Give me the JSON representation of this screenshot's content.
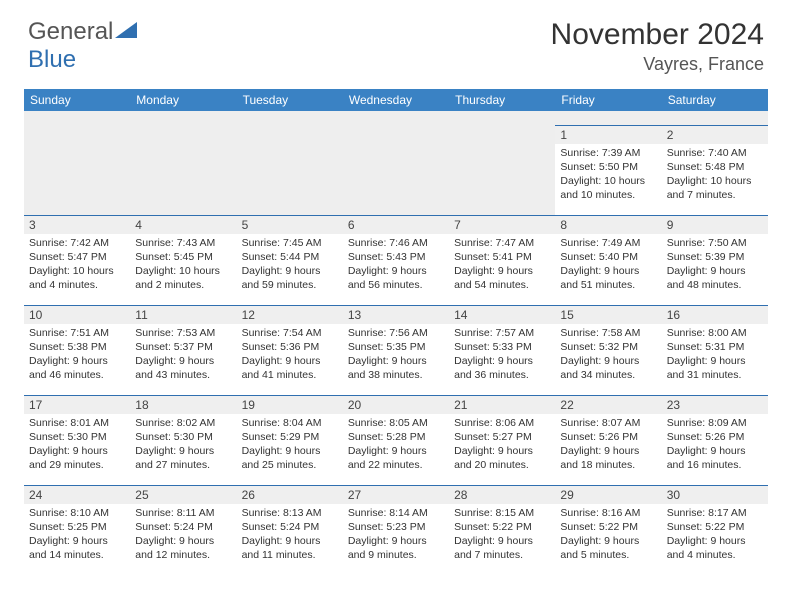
{
  "logo": {
    "text1": "General",
    "text2": "Blue"
  },
  "title": "November 2024",
  "location": "Vayres, France",
  "colors": {
    "header_bg": "#3a82c4",
    "header_text": "#ffffff",
    "cell_border": "#2f6fb0",
    "daynum_bg": "#efefef",
    "text": "#333333",
    "logo_blue": "#2f6fb0",
    "logo_gray": "#555555"
  },
  "typography": {
    "title_fontsize": 30,
    "location_fontsize": 18,
    "dayhead_fontsize": 12,
    "daynum_fontsize": 12,
    "info_fontsize": 10.5
  },
  "day_headers": [
    "Sunday",
    "Monday",
    "Tuesday",
    "Wednesday",
    "Thursday",
    "Friday",
    "Saturday"
  ],
  "weeks": [
    [
      null,
      null,
      null,
      null,
      null,
      {
        "n": "1",
        "sunrise": "7:39 AM",
        "sunset": "5:50 PM",
        "daylight": "10 hours and 10 minutes."
      },
      {
        "n": "2",
        "sunrise": "7:40 AM",
        "sunset": "5:48 PM",
        "daylight": "10 hours and 7 minutes."
      }
    ],
    [
      {
        "n": "3",
        "sunrise": "7:42 AM",
        "sunset": "5:47 PM",
        "daylight": "10 hours and 4 minutes."
      },
      {
        "n": "4",
        "sunrise": "7:43 AM",
        "sunset": "5:45 PM",
        "daylight": "10 hours and 2 minutes."
      },
      {
        "n": "5",
        "sunrise": "7:45 AM",
        "sunset": "5:44 PM",
        "daylight": "9 hours and 59 minutes."
      },
      {
        "n": "6",
        "sunrise": "7:46 AM",
        "sunset": "5:43 PM",
        "daylight": "9 hours and 56 minutes."
      },
      {
        "n": "7",
        "sunrise": "7:47 AM",
        "sunset": "5:41 PM",
        "daylight": "9 hours and 54 minutes."
      },
      {
        "n": "8",
        "sunrise": "7:49 AM",
        "sunset": "5:40 PM",
        "daylight": "9 hours and 51 minutes."
      },
      {
        "n": "9",
        "sunrise": "7:50 AM",
        "sunset": "5:39 PM",
        "daylight": "9 hours and 48 minutes."
      }
    ],
    [
      {
        "n": "10",
        "sunrise": "7:51 AM",
        "sunset": "5:38 PM",
        "daylight": "9 hours and 46 minutes."
      },
      {
        "n": "11",
        "sunrise": "7:53 AM",
        "sunset": "5:37 PM",
        "daylight": "9 hours and 43 minutes."
      },
      {
        "n": "12",
        "sunrise": "7:54 AM",
        "sunset": "5:36 PM",
        "daylight": "9 hours and 41 minutes."
      },
      {
        "n": "13",
        "sunrise": "7:56 AM",
        "sunset": "5:35 PM",
        "daylight": "9 hours and 38 minutes."
      },
      {
        "n": "14",
        "sunrise": "7:57 AM",
        "sunset": "5:33 PM",
        "daylight": "9 hours and 36 minutes."
      },
      {
        "n": "15",
        "sunrise": "7:58 AM",
        "sunset": "5:32 PM",
        "daylight": "9 hours and 34 minutes."
      },
      {
        "n": "16",
        "sunrise": "8:00 AM",
        "sunset": "5:31 PM",
        "daylight": "9 hours and 31 minutes."
      }
    ],
    [
      {
        "n": "17",
        "sunrise": "8:01 AM",
        "sunset": "5:30 PM",
        "daylight": "9 hours and 29 minutes."
      },
      {
        "n": "18",
        "sunrise": "8:02 AM",
        "sunset": "5:30 PM",
        "daylight": "9 hours and 27 minutes."
      },
      {
        "n": "19",
        "sunrise": "8:04 AM",
        "sunset": "5:29 PM",
        "daylight": "9 hours and 25 minutes."
      },
      {
        "n": "20",
        "sunrise": "8:05 AM",
        "sunset": "5:28 PM",
        "daylight": "9 hours and 22 minutes."
      },
      {
        "n": "21",
        "sunrise": "8:06 AM",
        "sunset": "5:27 PM",
        "daylight": "9 hours and 20 minutes."
      },
      {
        "n": "22",
        "sunrise": "8:07 AM",
        "sunset": "5:26 PM",
        "daylight": "9 hours and 18 minutes."
      },
      {
        "n": "23",
        "sunrise": "8:09 AM",
        "sunset": "5:26 PM",
        "daylight": "9 hours and 16 minutes."
      }
    ],
    [
      {
        "n": "24",
        "sunrise": "8:10 AM",
        "sunset": "5:25 PM",
        "daylight": "9 hours and 14 minutes."
      },
      {
        "n": "25",
        "sunrise": "8:11 AM",
        "sunset": "5:24 PM",
        "daylight": "9 hours and 12 minutes."
      },
      {
        "n": "26",
        "sunrise": "8:13 AM",
        "sunset": "5:24 PM",
        "daylight": "9 hours and 11 minutes."
      },
      {
        "n": "27",
        "sunrise": "8:14 AM",
        "sunset": "5:23 PM",
        "daylight": "9 hours and 9 minutes."
      },
      {
        "n": "28",
        "sunrise": "8:15 AM",
        "sunset": "5:22 PM",
        "daylight": "9 hours and 7 minutes."
      },
      {
        "n": "29",
        "sunrise": "8:16 AM",
        "sunset": "5:22 PM",
        "daylight": "9 hours and 5 minutes."
      },
      {
        "n": "30",
        "sunrise": "8:17 AM",
        "sunset": "5:22 PM",
        "daylight": "9 hours and 4 minutes."
      }
    ]
  ],
  "labels": {
    "sunrise": "Sunrise: ",
    "sunset": "Sunset: ",
    "daylight": "Daylight: "
  }
}
